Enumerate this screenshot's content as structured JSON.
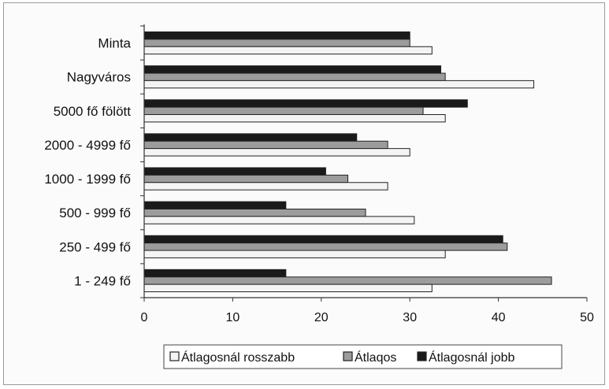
{
  "chart_data": {
    "type": "bar",
    "orientation": "horizontal",
    "categories": [
      "Minta",
      "Nagyváros",
      "5000 fő fölött",
      "2000 - 4999 fő",
      "1000 - 1999 fő",
      "500 - 999 fő",
      "250 - 499 fő",
      "1 - 249 fő"
    ],
    "series": [
      {
        "name": "Átlagosnál jobb",
        "values": [
          30,
          33.5,
          36.5,
          24,
          20.5,
          16,
          40.5,
          16
        ],
        "color": "#1a1a1a"
      },
      {
        "name": "Átlaqos",
        "values": [
          30,
          34,
          31.5,
          27.5,
          23,
          25,
          41,
          46
        ],
        "color": "#9c9c9c"
      },
      {
        "name": "Átlagosnál rosszabb",
        "values": [
          32.5,
          44,
          34,
          30,
          27.5,
          30.5,
          34,
          32.5
        ],
        "color": "#f4f4f4"
      }
    ],
    "legend_order": [
      "Átlagosnál rosszabb",
      "Átlaqos",
      "Átlagosnál jobb"
    ],
    "xlim": [
      0,
      50
    ],
    "xticks": [
      0,
      10,
      20,
      30,
      40,
      50
    ],
    "legend_position": "bottom"
  }
}
